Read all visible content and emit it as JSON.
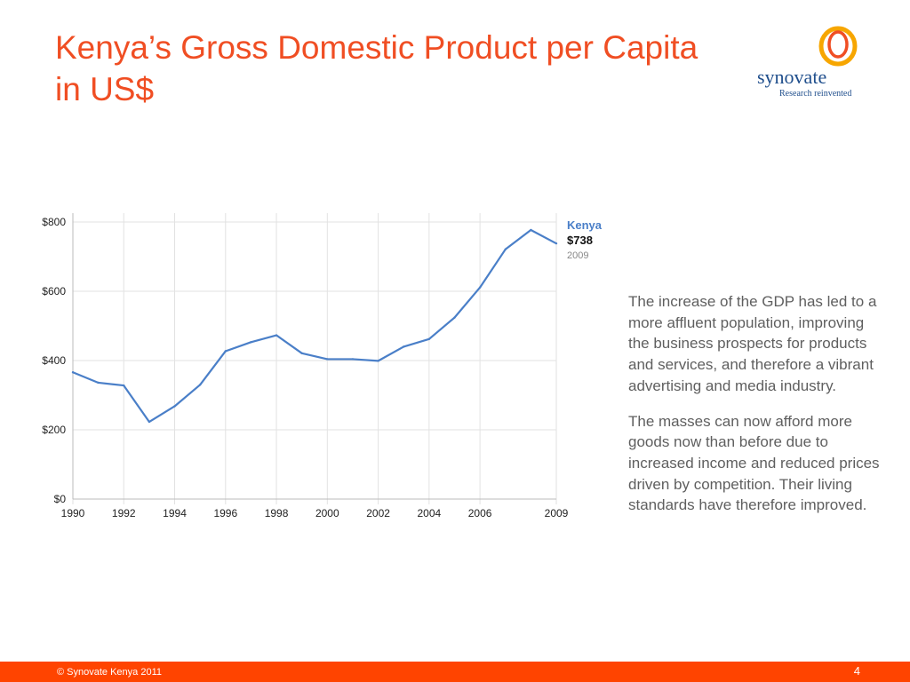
{
  "slide": {
    "title_line1": "Kenya’s Gross Domestic Product per Capita",
    "title_line2": "in US$",
    "page_number": "4"
  },
  "logo": {
    "wordmark": "synovate",
    "tagline": "Research reinvented",
    "colors": {
      "outer": "#f7a600",
      "inner": "#f04e23",
      "text": "#1f4e8c"
    }
  },
  "body": {
    "paragraph1": "The increase of the GDP has led to a more affluent population, improving the business prospects for products and services, and therefore a vibrant advertising and media industry.",
    "paragraph2": "The masses can now afford more goods now than before due to increased income and reduced prices driven by competition. Their living standards have therefore improved."
  },
  "footer": {
    "copyright": "© Synovate Kenya 2011",
    "bar_color": "#ff4400"
  },
  "chart_data": {
    "type": "line",
    "x": [
      1990,
      1991,
      1992,
      1993,
      1994,
      1995,
      1996,
      1997,
      1998,
      1999,
      2000,
      2001,
      2002,
      2003,
      2004,
      2005,
      2006,
      2007,
      2008,
      2009
    ],
    "series": [
      {
        "name": "Kenya",
        "color": "#4a7fc8",
        "values": [
          366,
          336,
          328,
          223,
          268,
          330,
          427,
          453,
          473,
          421,
          404,
          404,
          399,
          440,
          462,
          524,
          611,
          721,
          777,
          738
        ]
      }
    ],
    "xticks": [
      "1990",
      "1992",
      "1994",
      "1996",
      "1998",
      "2000",
      "2002",
      "2004",
      "2006",
      "2009"
    ],
    "ytick_labels": [
      "$0",
      "$200",
      "$400",
      "$600",
      "$800"
    ],
    "ytick_values": [
      0,
      200,
      400,
      600,
      800
    ],
    "ylim": [
      0,
      800
    ],
    "grid": true,
    "legend": {
      "placement": "top-right",
      "name": "Kenya",
      "value": "$738",
      "year": "2009"
    }
  }
}
